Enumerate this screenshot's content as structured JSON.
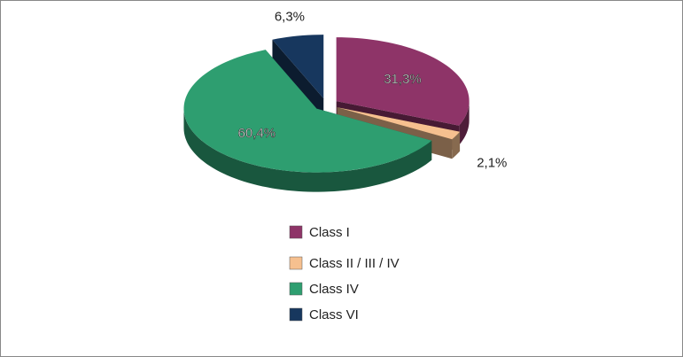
{
  "chart_data": {
    "type": "pie",
    "categories": [
      "Class I",
      "Class II / III / IV",
      "Class IV",
      "Class VI"
    ],
    "values": [
      31.3,
      2.1,
      60.4,
      6.3
    ],
    "value_labels": [
      "31,3%",
      "2,1%",
      "60,4%",
      "6,3%"
    ],
    "colors": [
      "#8e3468",
      "#f6c08f",
      "#2e9e70",
      "#17375e"
    ],
    "legend": "bottom"
  }
}
